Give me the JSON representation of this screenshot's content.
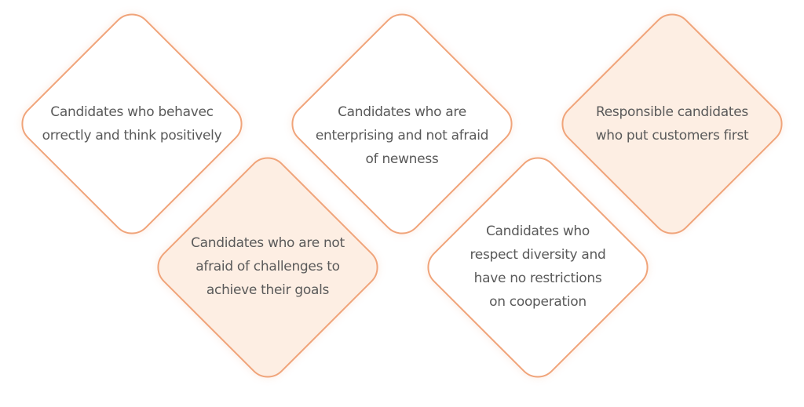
{
  "cards": [
    {
      "lines": [
        "Candidates who behavec",
        "orrectly and think positively"
      ],
      "fill": "#ffffff"
    },
    {
      "lines": [
        "Candidates who are",
        "enterprising and not afraid",
        "of newness"
      ],
      "fill": "#ffffff"
    },
    {
      "lines": [
        "Responsible candidates",
        "who put customers first"
      ],
      "fill": "#fdeee3"
    },
    {
      "lines": [
        "Candidates who are not",
        "afraid of challenges to",
        "achieve their goals"
      ],
      "fill": "#fdeee3"
    },
    {
      "lines": [
        "Candidates who",
        "respect diversity and",
        "have no restrictions",
        "on cooperation"
      ],
      "fill": "#ffffff"
    }
  ],
  "colors": {
    "border": "#f0a47a",
    "highlight_fill": "#fdeee3",
    "text": "#5a5a5a"
  }
}
